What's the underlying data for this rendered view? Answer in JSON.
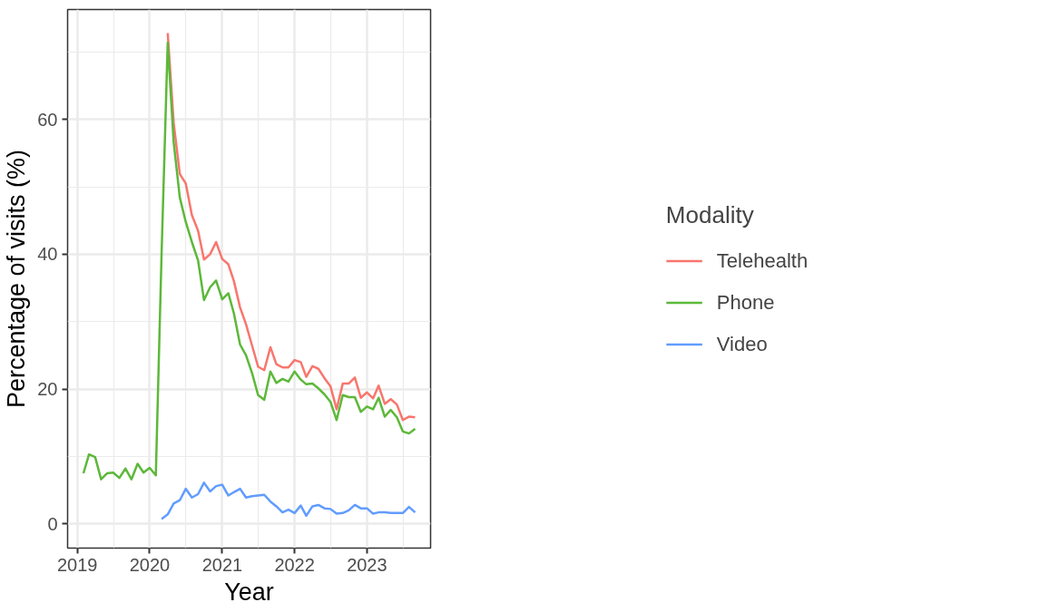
{
  "chart_data": {
    "type": "line",
    "xlabel": "Year",
    "ylabel": "Percentage of visits (%)",
    "legend_title": "Modality",
    "legend": "right",
    "grid": true,
    "line_style": "solid",
    "x": [
      "2019-02",
      "2019-03",
      "2019-04",
      "2019-05",
      "2019-06",
      "2019-07",
      "2019-08",
      "2019-09",
      "2019-10",
      "2019-11",
      "2019-12",
      "2020-01",
      "2020-02",
      "2020-03",
      "2020-04",
      "2020-05",
      "2020-06",
      "2020-07",
      "2020-08",
      "2020-09",
      "2020-10",
      "2020-11",
      "2020-12",
      "2021-01",
      "2021-02",
      "2021-03",
      "2021-04",
      "2021-05",
      "2021-06",
      "2021-07",
      "2021-08",
      "2021-09",
      "2021-10",
      "2021-11",
      "2021-12",
      "2022-01",
      "2022-02",
      "2022-03",
      "2022-04",
      "2022-05",
      "2022-06",
      "2022-07",
      "2022-08",
      "2022-09",
      "2022-10",
      "2022-11",
      "2022-12",
      "2023-01",
      "2023-02",
      "2023-03",
      "2023-04",
      "2023-05",
      "2023-06",
      "2023-07",
      "2023-08",
      "2023-09"
    ],
    "xlim": [
      "2018-11-13",
      "2023-11-18"
    ],
    "xticks": [
      {
        "value": "2019-01-01",
        "label": "2019"
      },
      {
        "value": "2020-01-01",
        "label": "2020"
      },
      {
        "value": "2021-01-01",
        "label": "2021"
      },
      {
        "value": "2022-01-01",
        "label": "2022"
      },
      {
        "value": "2023-01-01",
        "label": "2023"
      }
    ],
    "ylim": [
      -3.6,
      76.3
    ],
    "yticks": [
      0,
      20,
      40,
      60
    ],
    "series": [
      {
        "name": "Telehealth",
        "color": "#f8766d",
        "values": [
          null,
          null,
          null,
          null,
          null,
          null,
          null,
          null,
          null,
          null,
          null,
          null,
          null,
          null,
          72.8,
          59.5,
          51.9,
          50.5,
          45.8,
          43.5,
          39.2,
          40,
          41.8,
          39.3,
          38.5,
          36.0,
          32.1,
          29.6,
          26.4,
          23.3,
          22.8,
          26.2,
          23.7,
          23.2,
          23.2,
          24.3,
          24.0,
          21.8,
          23.4,
          23.0,
          21.6,
          20.4,
          17.0,
          20.8,
          20.8,
          21.7,
          18.7,
          19.5,
          18.6,
          20.5,
          17.8,
          18.5,
          17.7,
          15.4,
          15.9,
          15.8
        ]
      },
      {
        "name": "Phone",
        "color": "#5db83a",
        "values": [
          7.5,
          10.3,
          9.9,
          6.6,
          7.5,
          7.6,
          6.8,
          8.2,
          6.6,
          8.9,
          7.6,
          8.3,
          7.2,
          40,
          71.4,
          56.6,
          48.4,
          44.8,
          41.8,
          39.1,
          33.2,
          35.1,
          36.1,
          33.3,
          34.2,
          31.2,
          26.6,
          25.0,
          22.3,
          19.1,
          18.4,
          22.6,
          20.9,
          21.5,
          21.1,
          22.6,
          21.4,
          20.7,
          20.8,
          20.1,
          19.2,
          18.1,
          15.4,
          19.1,
          18.8,
          18.8,
          16.6,
          17.4,
          17.0,
          18.7,
          15.9,
          16.9,
          15.8,
          13.7,
          13.4,
          14.1
        ]
      },
      {
        "name": "Video",
        "color": "#619cff",
        "values": [
          null,
          null,
          null,
          null,
          null,
          null,
          null,
          null,
          null,
          null,
          null,
          null,
          null,
          0.7,
          1.4,
          3.0,
          3.5,
          5.2,
          3.9,
          4.4,
          6.1,
          4.8,
          5.6,
          5.8,
          4.2,
          4.7,
          5.2,
          3.9,
          4.1,
          4.2,
          4.3,
          3.3,
          2.6,
          1.7,
          2.1,
          1.6,
          2.7,
          1.2,
          2.6,
          2.8,
          2.3,
          2.2,
          1.5,
          1.6,
          2.0,
          2.8,
          2.3,
          2.3,
          1.5,
          1.7,
          1.7,
          1.6,
          1.6,
          1.6,
          2.5,
          1.7
        ]
      }
    ]
  }
}
